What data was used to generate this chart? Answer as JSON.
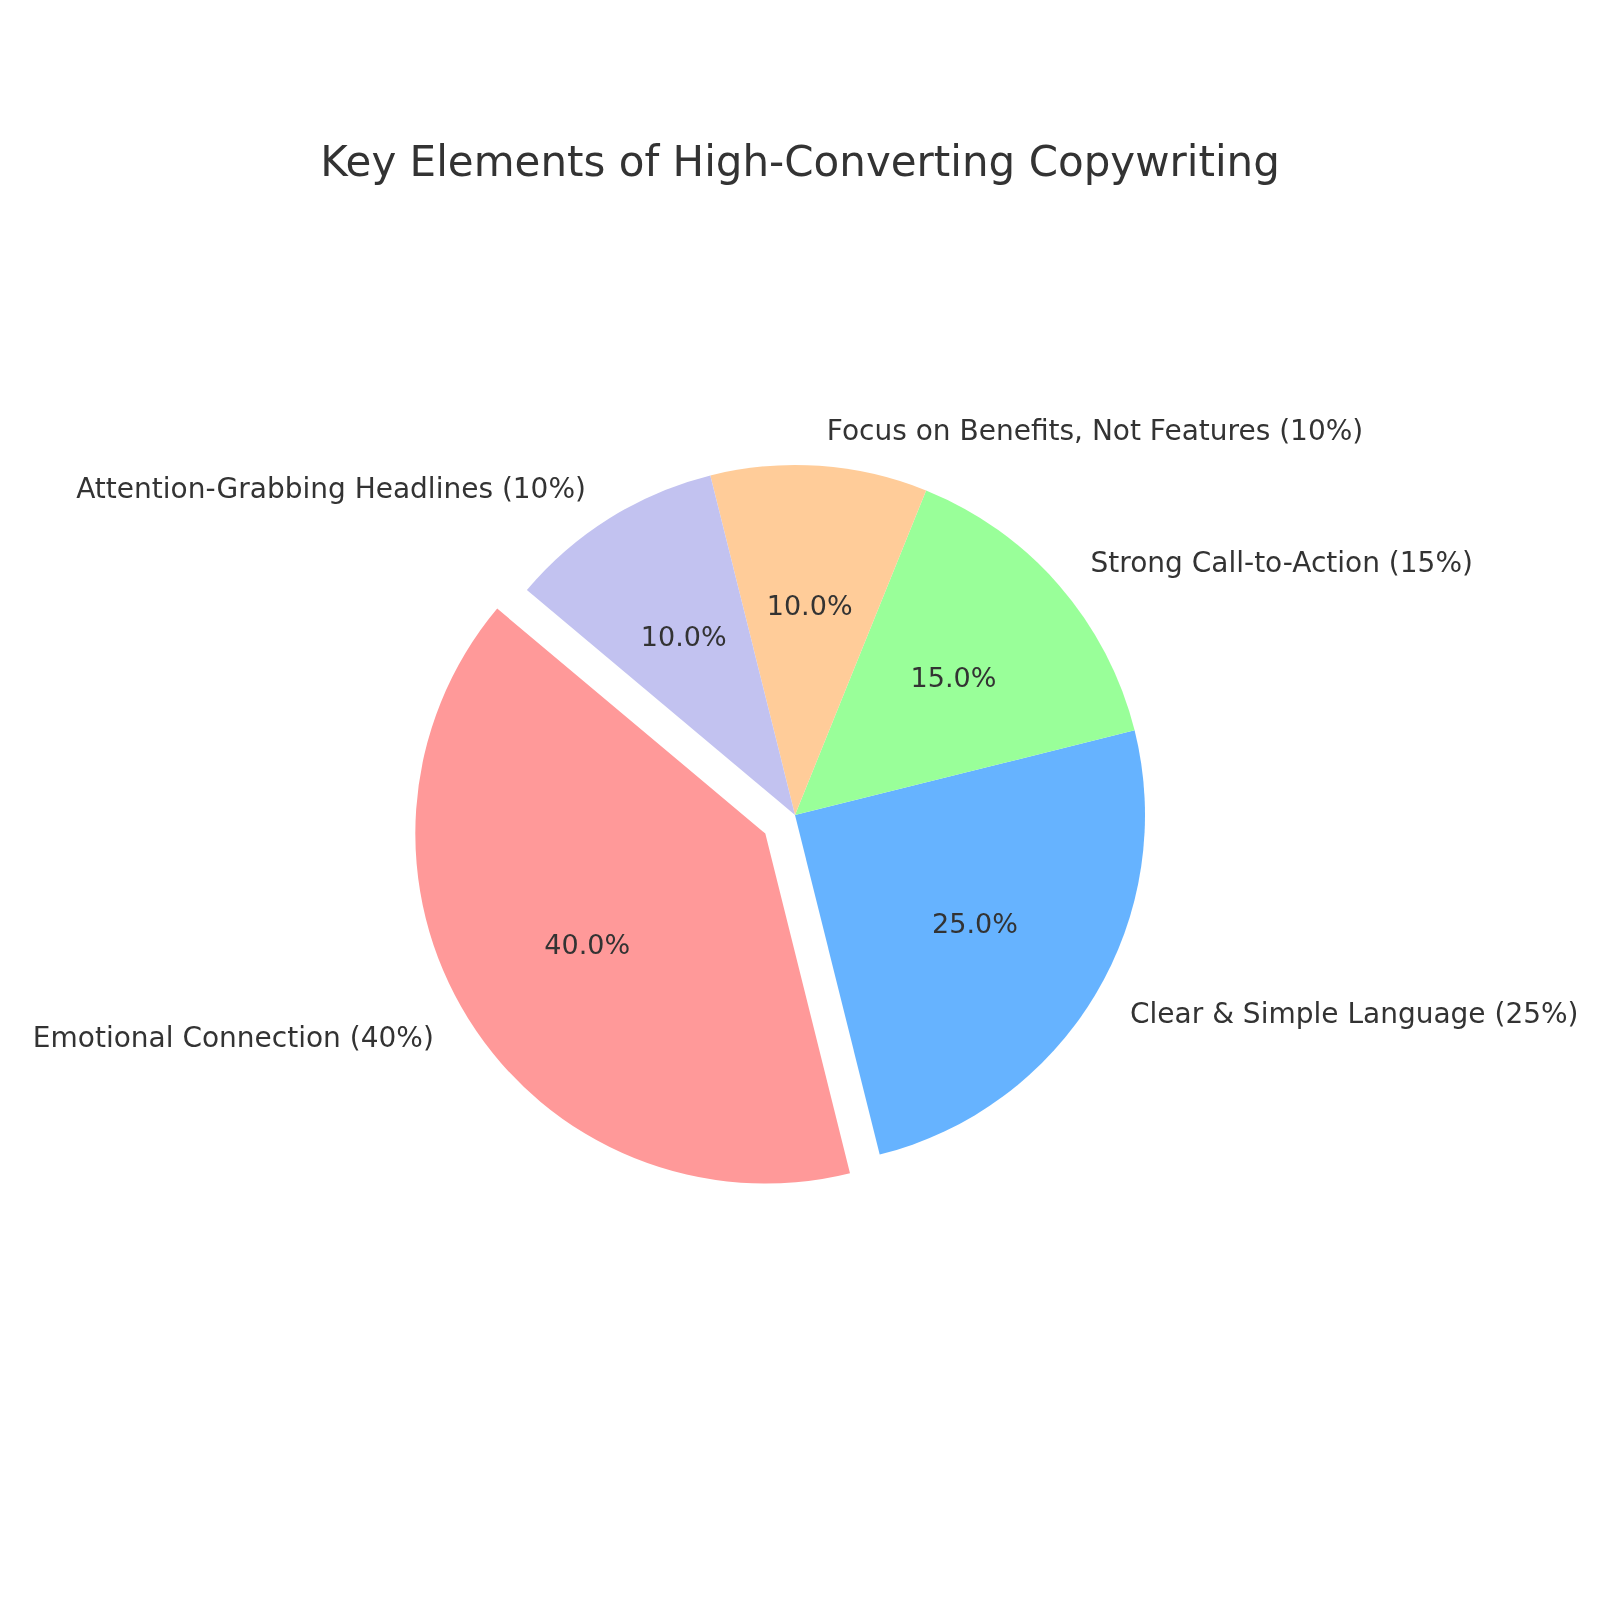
{
  "chart_data": {
    "type": "pie",
    "title": "Key Elements of High-Converting Copywriting",
    "categories": [
      "Emotional Connection (40%)",
      "Clear & Simple Language (25%)",
      "Strong Call-to-Action (15%)",
      "Focus on Benefits, Not Features (10%)",
      "Attention-Grabbing Headlines (10%)"
    ],
    "values": [
      40,
      25,
      15,
      10,
      10
    ],
    "colors": [
      "#ff9999",
      "#66b3ff",
      "#99ff99",
      "#ffcc99",
      "#c2c2f0"
    ],
    "value_labels": [
      "40.0%",
      "25.0%",
      "15.0%",
      "10.0%",
      "10.0%"
    ]
  }
}
